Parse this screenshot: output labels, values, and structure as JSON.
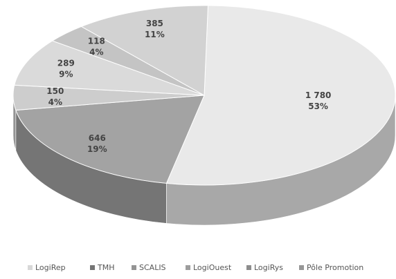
{
  "chart_data": {
    "type": "pie3d",
    "categories": [
      "LogiRep",
      "TMH",
      "SCALIS",
      "LogiOuest",
      "LogiRys",
      "Pôle Promotion"
    ],
    "values": [
      1780,
      646,
      150,
      289,
      118,
      385
    ],
    "value_labels": [
      "1 780",
      "646",
      "150",
      "289",
      "118",
      "385"
    ],
    "percent_labels": [
      "53%",
      "19%",
      "4%",
      "9%",
      "4%",
      "11%"
    ],
    "colors": [
      "#e9e9e9",
      "#a3a3a3",
      "#cdcdcd",
      "#dadada",
      "#c4c4c4",
      "#d2d2d2"
    ],
    "legend": "bottom"
  }
}
